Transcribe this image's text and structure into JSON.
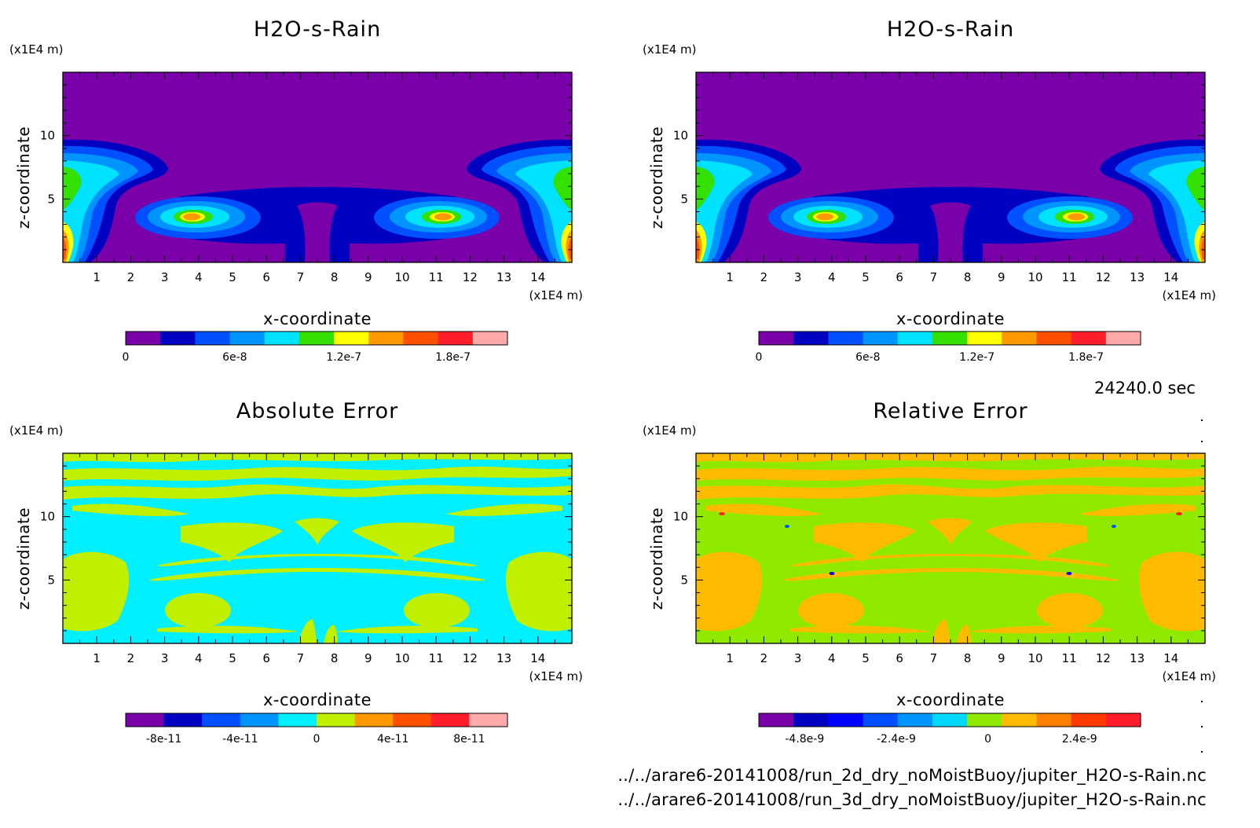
{
  "time_label": "24240.0 sec",
  "file_paths": [
    "../../arare6-20141008/run_2d_dry_noMoistBuoy/jupiter_H2O-s-Rain.nc",
    "../../arare6-20141008/run_3d_dry_noMoistBuoy/jupiter_H2O-s-Rain.nc"
  ],
  "chart_data": [
    {
      "type": "heatmap",
      "title": "H2O-s-Rain",
      "xlabel": "x-coordinate",
      "ylabel": "z-coordinate",
      "x_unit": "(x1E4 m)",
      "y_unit": "(x1E4 m)",
      "xlim": [
        0,
        15
      ],
      "ylim": [
        0,
        15
      ],
      "x_ticks": [
        "1",
        "2",
        "3",
        "4",
        "5",
        "6",
        "7",
        "8",
        "9",
        "10",
        "11",
        "12",
        "13",
        "14"
      ],
      "y_ticks": [
        "5",
        "10"
      ],
      "colorbar": {
        "levels": 11,
        "range": [
          0,
          2.1e-07
        ],
        "tick_labels": [
          "0",
          "6e-8",
          "1.2e-7",
          "1.8e-7"
        ],
        "colors": [
          "#7a00aa",
          "#0000c0",
          "#0050ff",
          "#0094ff",
          "#00e2ff",
          "#33e000",
          "#ffff00",
          "#ff9900",
          "#ff5000",
          "#ff1e2a",
          "#ffaaaa"
        ]
      }
    },
    {
      "type": "heatmap",
      "title": "H2O-s-Rain",
      "xlabel": "x-coordinate",
      "ylabel": "z-coordinate",
      "x_unit": "(x1E4 m)",
      "y_unit": "(x1E4 m)",
      "xlim": [
        0,
        15
      ],
      "ylim": [
        0,
        15
      ],
      "x_ticks": [
        "1",
        "2",
        "3",
        "4",
        "5",
        "6",
        "7",
        "8",
        "9",
        "10",
        "11",
        "12",
        "13",
        "14"
      ],
      "y_ticks": [
        "5",
        "10"
      ],
      "colorbar": {
        "levels": 11,
        "range": [
          0,
          2.1e-07
        ],
        "tick_labels": [
          "0",
          "6e-8",
          "1.2e-7",
          "1.8e-7"
        ],
        "colors": [
          "#7a00aa",
          "#0000c0",
          "#0050ff",
          "#0094ff",
          "#00e2ff",
          "#33e000",
          "#ffff00",
          "#ff9900",
          "#ff5000",
          "#ff1e2a",
          "#ffaaaa"
        ]
      }
    },
    {
      "type": "heatmap",
      "title": "Absolute Error",
      "xlabel": "x-coordinate",
      "ylabel": "z-coordinate",
      "x_unit": "(x1E4 m)",
      "y_unit": "(x1E4 m)",
      "xlim": [
        0,
        15
      ],
      "ylim": [
        0,
        15
      ],
      "x_ticks": [
        "1",
        "2",
        "3",
        "4",
        "5",
        "6",
        "7",
        "8",
        "9",
        "10",
        "11",
        "12",
        "13",
        "14"
      ],
      "y_ticks": [
        "5",
        "10"
      ],
      "colorbar": {
        "levels": 10,
        "range": [
          -1e-10,
          1e-10
        ],
        "tick_labels": [
          "-8e-11",
          "-4e-11",
          "0",
          "4e-11",
          "8e-11"
        ],
        "colors": [
          "#7a00aa",
          "#0000c0",
          "#0050ff",
          "#0094ff",
          "#00f0ff",
          "#c0f000",
          "#ff9900",
          "#ff5000",
          "#ff1e2a",
          "#ffaaaa"
        ]
      }
    },
    {
      "type": "heatmap",
      "title": "Relative Error",
      "xlabel": "x-coordinate",
      "ylabel": "z-coordinate",
      "x_unit": "(x1E4 m)",
      "y_unit": "(x1E4 m)",
      "xlim": [
        0,
        15
      ],
      "ylim": [
        0,
        15
      ],
      "x_ticks": [
        "1",
        "2",
        "3",
        "4",
        "5",
        "6",
        "7",
        "8",
        "9",
        "10",
        "11",
        "12",
        "13",
        "14"
      ],
      "y_ticks": [
        "5",
        "10"
      ],
      "colorbar": {
        "levels": 11,
        "range": [
          -6e-09,
          4e-09
        ],
        "tick_labels": [
          "-4.8e-9",
          "-2.4e-9",
          "0",
          "2.4e-9"
        ],
        "colors": [
          "#7a00aa",
          "#0000c0",
          "#0000ff",
          "#0050ff",
          "#0094ff",
          "#00d8ff",
          "#90ea00",
          "#ffbb00",
          "#ff8000",
          "#ff3a00",
          "#ff1e2a"
        ]
      }
    }
  ]
}
